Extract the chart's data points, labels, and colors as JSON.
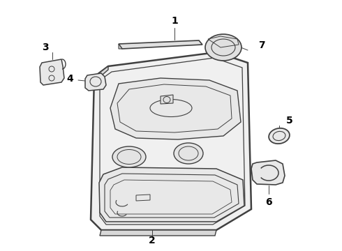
{
  "bg_color": "#ffffff",
  "line_color": "#404040",
  "label_color": "#000000",
  "fig_width": 4.9,
  "fig_height": 3.6,
  "dpi": 100,
  "label_fontsize": 10,
  "label_fontweight": "bold"
}
